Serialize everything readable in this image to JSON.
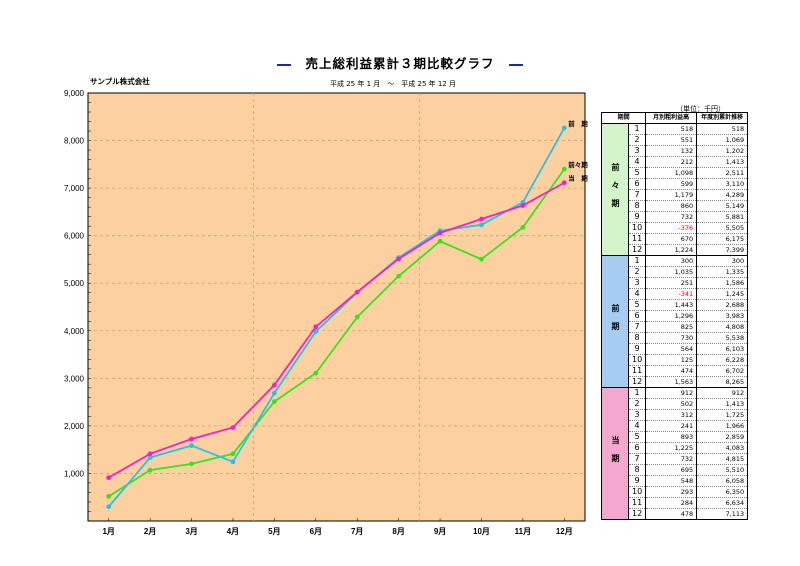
{
  "title": "売上総利益累計３期比較グラフ",
  "company": "サンプル株式会社",
  "period": "平成 25 年 1 月　～　平成 25 年 12 月",
  "unit": "（単位：千円）",
  "table": {
    "headers": [
      "期間",
      "月別粗利益高",
      "年度別累計推移"
    ],
    "groups": [
      {
        "label": "前々期",
        "color": "#d4f5c9",
        "rows": [
          {
            "m": "1",
            "v": "518",
            "c": "518"
          },
          {
            "m": "2",
            "v": "551",
            "c": "1,069"
          },
          {
            "m": "3",
            "v": "132",
            "c": "1,202"
          },
          {
            "m": "4",
            "v": "212",
            "c": "1,413"
          },
          {
            "m": "5",
            "v": "1,098",
            "c": "2,511"
          },
          {
            "m": "6",
            "v": "599",
            "c": "3,110"
          },
          {
            "m": "7",
            "v": "1,179",
            "c": "4,289"
          },
          {
            "m": "8",
            "v": "860",
            "c": "5,149"
          },
          {
            "m": "9",
            "v": "732",
            "c": "5,881"
          },
          {
            "m": "10",
            "v": "-376",
            "c": "5,505"
          },
          {
            "m": "11",
            "v": "670",
            "c": "6,175"
          },
          {
            "m": "12",
            "v": "1,224",
            "c": "7,399"
          }
        ]
      },
      {
        "label": "前期",
        "color": "#a6ccf2",
        "rows": [
          {
            "m": "1",
            "v": "300",
            "c": "300"
          },
          {
            "m": "2",
            "v": "1,035",
            "c": "1,335"
          },
          {
            "m": "3",
            "v": "251",
            "c": "1,586"
          },
          {
            "m": "4",
            "v": "-341",
            "c": "1,245"
          },
          {
            "m": "5",
            "v": "1,443",
            "c": "2,688"
          },
          {
            "m": "6",
            "v": "1,296",
            "c": "3,983"
          },
          {
            "m": "7",
            "v": "825",
            "c": "4,808"
          },
          {
            "m": "8",
            "v": "730",
            "c": "5,538"
          },
          {
            "m": "9",
            "v": "564",
            "c": "6,103"
          },
          {
            "m": "10",
            "v": "125",
            "c": "6,228"
          },
          {
            "m": "11",
            "v": "474",
            "c": "6,702"
          },
          {
            "m": "12",
            "v": "1,563",
            "c": "8,265"
          }
        ]
      },
      {
        "label": "当期",
        "color": "#f2a8cf",
        "rows": [
          {
            "m": "1",
            "v": "912",
            "c": "912"
          },
          {
            "m": "2",
            "v": "502",
            "c": "1,413"
          },
          {
            "m": "3",
            "v": "312",
            "c": "1,725"
          },
          {
            "m": "4",
            "v": "241",
            "c": "1,966"
          },
          {
            "m": "5",
            "v": "893",
            "c": "2,859"
          },
          {
            "m": "6",
            "v": "1,225",
            "c": "4,083"
          },
          {
            "m": "7",
            "v": "732",
            "c": "4,815"
          },
          {
            "m": "8",
            "v": "695",
            "c": "5,510"
          },
          {
            "m": "9",
            "v": "548",
            "c": "6,058"
          },
          {
            "m": "10",
            "v": "293",
            "c": "6,350"
          },
          {
            "m": "11",
            "v": "284",
            "c": "6,634"
          },
          {
            "m": "12",
            "v": "478",
            "c": "7,113"
          }
        ]
      }
    ]
  },
  "chart_data": {
    "type": "line",
    "categories": [
      "1月",
      "2月",
      "3月",
      "4月",
      "5月",
      "6月",
      "7月",
      "8月",
      "9月",
      "10月",
      "11月",
      "12月"
    ],
    "ylim": [
      0,
      9000
    ],
    "yticks": [
      "1,000",
      "2,000",
      "3,000",
      "4,000",
      "5,000",
      "6,000",
      "7,000",
      "8,000",
      "9,000"
    ],
    "grid": true,
    "background": "#fdd19f",
    "series": [
      {
        "name": "前々期",
        "color": "#33e61a",
        "end_label": "前々期",
        "values": [
          518,
          1069,
          1202,
          1413,
          2511,
          3110,
          4289,
          5149,
          5881,
          5505,
          6175,
          7399
        ]
      },
      {
        "name": "前期",
        "color": "#22c4e8",
        "end_label": "前　期",
        "values": [
          300,
          1335,
          1586,
          1245,
          2688,
          3983,
          4808,
          5538,
          6103,
          6228,
          6702,
          8265
        ]
      },
      {
        "name": "当期",
        "color": "#ff1acb",
        "end_label": "当　期",
        "values": [
          912,
          1413,
          1725,
          1966,
          2859,
          4083,
          4815,
          5510,
          6058,
          6350,
          6634,
          7113
        ]
      }
    ]
  }
}
